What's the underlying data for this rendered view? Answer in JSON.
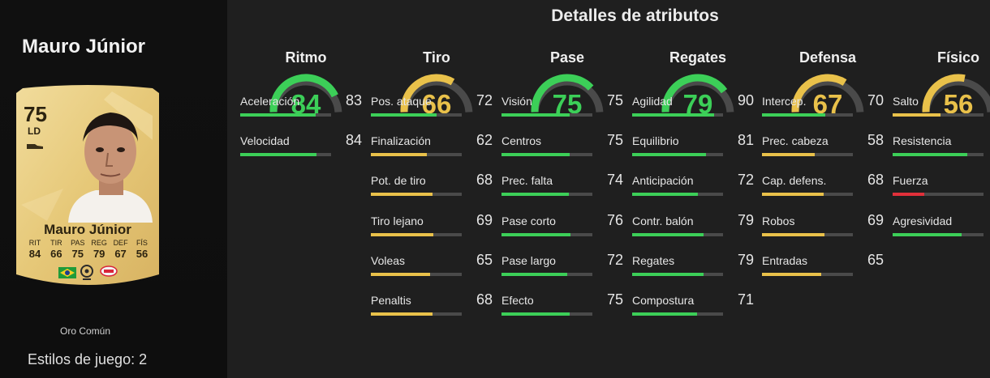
{
  "player": {
    "name": "Mauro Júnior",
    "card_name": "Mauro Júnior",
    "rating": "75",
    "position": "LD",
    "card_type": "Oro Común",
    "playstyles": "Estilos de juego: 2",
    "card_stats": [
      {
        "label": "RIT",
        "value": "84"
      },
      {
        "label": "TIR",
        "value": "66"
      },
      {
        "label": "PAS",
        "value": "75"
      },
      {
        "label": "REG",
        "value": "79"
      },
      {
        "label": "DEF",
        "value": "67"
      },
      {
        "label": "FÍS",
        "value": "56"
      }
    ]
  },
  "title": "Detalles de atributos",
  "colors": {
    "green": "#3ccf58",
    "yellow": "#e9c14a",
    "red": "#e0303a",
    "track": "#4a4a4a"
  },
  "categories": [
    {
      "name": "Ritmo",
      "value": 84,
      "attributes": [
        {
          "name": "Aceleración",
          "value": 83
        },
        {
          "name": "Velocidad",
          "value": 84
        }
      ]
    },
    {
      "name": "Tiro",
      "value": 66,
      "attributes": [
        {
          "name": "Pos. ataque",
          "value": 72
        },
        {
          "name": "Finalización",
          "value": 62
        },
        {
          "name": "Pot. de tiro",
          "value": 68
        },
        {
          "name": "Tiro lejano",
          "value": 69
        },
        {
          "name": "Voleas",
          "value": 65
        },
        {
          "name": "Penaltis",
          "value": 68
        }
      ]
    },
    {
      "name": "Pase",
      "value": 75,
      "attributes": [
        {
          "name": "Visión",
          "value": 75
        },
        {
          "name": "Centros",
          "value": 75
        },
        {
          "name": "Prec. falta",
          "value": 74
        },
        {
          "name": "Pase corto",
          "value": 76
        },
        {
          "name": "Pase largo",
          "value": 72
        },
        {
          "name": "Efecto",
          "value": 75
        }
      ]
    },
    {
      "name": "Regates",
      "value": 79,
      "attributes": [
        {
          "name": "Agilidad",
          "value": 90
        },
        {
          "name": "Equilibrio",
          "value": 81
        },
        {
          "name": "Anticipación",
          "value": 72
        },
        {
          "name": "Contr. balón",
          "value": 79
        },
        {
          "name": "Regates",
          "value": 79
        },
        {
          "name": "Compostura",
          "value": 71
        }
      ]
    },
    {
      "name": "Defensa",
      "value": 67,
      "attributes": [
        {
          "name": "Intercep.",
          "value": 70
        },
        {
          "name": "Prec. cabeza",
          "value": 58
        },
        {
          "name": "Cap. defens.",
          "value": 68
        },
        {
          "name": "Robos",
          "value": 69
        },
        {
          "name": "Entradas",
          "value": 65
        }
      ]
    },
    {
      "name": "Físico",
      "value": 56,
      "attributes": [
        {
          "name": "Salto",
          "value": 53
        },
        {
          "name": "Resistencia",
          "value": 82
        },
        {
          "name": "Fuerza",
          "value": 35
        },
        {
          "name": "Agresividad",
          "value": 76
        }
      ]
    }
  ]
}
